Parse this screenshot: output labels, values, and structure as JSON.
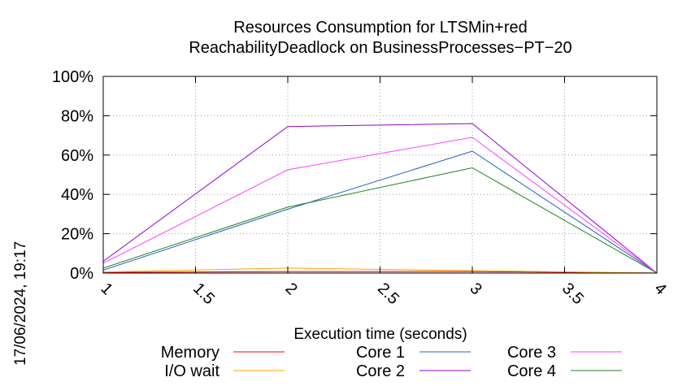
{
  "timestamp": "17/06/2024, 19:17",
  "chart_data": {
    "type": "line",
    "title": [
      "Resources Consumption for LTSMin+red",
      "ReachabilityDeadlock on BusinessProcesses−PT−20"
    ],
    "xlabel": "Execution time (seconds)",
    "ylabel": "",
    "xlim": [
      1,
      4
    ],
    "ylim": [
      0,
      100
    ],
    "x_ticks": [
      1,
      1.5,
      2,
      2.5,
      3,
      3.5,
      4
    ],
    "x_tick_labels": [
      "1",
      "1.5",
      "2",
      "2.5",
      "3",
      "3.5",
      "4"
    ],
    "y_ticks": [
      0,
      20,
      40,
      60,
      80,
      100
    ],
    "y_tick_labels": [
      "0%",
      "20%",
      "40%",
      "60%",
      "80%",
      "100%"
    ],
    "grid": true,
    "legend_position": "bottom",
    "series": [
      {
        "name": "Memory",
        "color": "#ff0000",
        "x": [
          1,
          2,
          3,
          4
        ],
        "y": [
          0.3,
          0.8,
          0.8,
          0
        ]
      },
      {
        "name": "I/O wait",
        "color": "#ffa000",
        "x": [
          1,
          2,
          3,
          4
        ],
        "y": [
          0.5,
          2.5,
          1.2,
          0
        ]
      },
      {
        "name": "Core 1",
        "color": "#2060c0",
        "x": [
          1,
          2,
          3,
          4
        ],
        "y": [
          1.5,
          32.5,
          62,
          0
        ]
      },
      {
        "name": "Core 2",
        "color": "#9400d3",
        "x": [
          1,
          2,
          3,
          4
        ],
        "y": [
          6,
          74.5,
          76,
          0
        ]
      },
      {
        "name": "Core 3",
        "color": "#ff40ff",
        "x": [
          1,
          2,
          3,
          4
        ],
        "y": [
          5,
          52.5,
          69,
          0
        ]
      },
      {
        "name": "Core 4",
        "color": "#208020",
        "x": [
          1,
          2,
          3,
          4
        ],
        "y": [
          2.5,
          33.5,
          53.5,
          0
        ]
      }
    ]
  }
}
